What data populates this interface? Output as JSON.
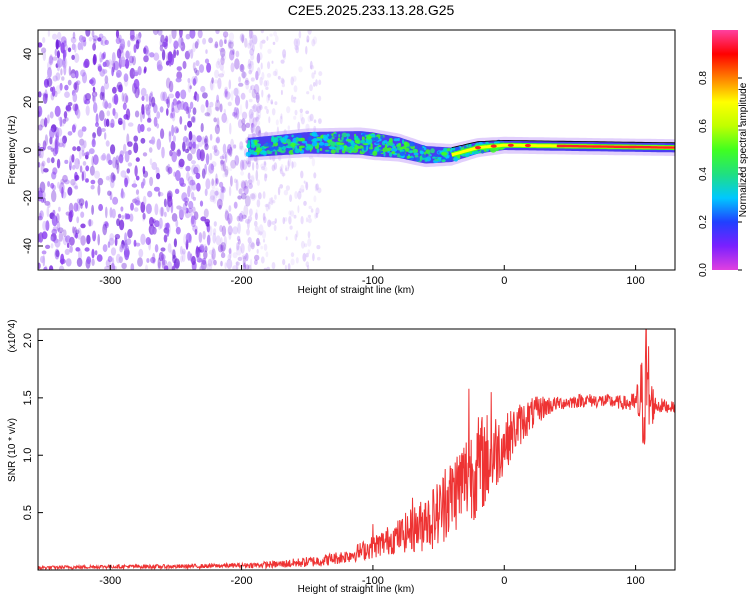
{
  "title": "C2E5.2025.233.13.28.G25",
  "colors": {
    "snr_line": "#ee3333",
    "spectrogram_band": "#1f5bff",
    "noise": "#7b2be0"
  },
  "chart_data": [
    {
      "type": "heatmap",
      "title": "C2E5.2025.233.13.28.G25",
      "xlabel": "Height of straight line (km)",
      "ylabel": "Frequency (Hz)",
      "xlim": [
        -355,
        130
      ],
      "ylim": [
        -50,
        50
      ],
      "xticks": [
        "-300",
        "-200",
        "-100",
        "0",
        "100"
      ],
      "yticks": [
        "-40",
        "-20",
        "0",
        "20",
        "40"
      ],
      "colorbar": {
        "label": "Normalized spectral amplitude",
        "range": [
          0,
          1
        ],
        "ticks": [
          "0.0",
          "0.2",
          "0.4",
          "0.6",
          "0.8"
        ],
        "colormap": [
          "#e040e0",
          "#7a20ff",
          "#2040ff",
          "#00c8ff",
          "#20e080",
          "#40ff20",
          "#c0ff00",
          "#ffff00",
          "#ff8000",
          "#ff0000",
          "#ff40a0"
        ]
      },
      "band": {
        "x_start": -195,
        "x_end": 130,
        "center": [
          [
            -195,
            1
          ],
          [
            -150,
            3
          ],
          [
            -110,
            3
          ],
          [
            -80,
            1
          ],
          [
            -60,
            -2
          ],
          [
            -40,
            -2
          ],
          [
            -20,
            1
          ],
          [
            0,
            2
          ],
          [
            130,
            1
          ]
        ],
        "halfwidth": [
          [
            -195,
            4
          ],
          [
            -100,
            5
          ],
          [
            -40,
            3
          ],
          [
            0,
            2
          ],
          [
            130,
            2
          ]
        ]
      },
      "noise_region": [
        -355,
        -195
      ],
      "faint_column": [
        -195,
        -140
      ]
    },
    {
      "type": "line",
      "xlabel": "Height of straight line (km)",
      "ylabel": "SNR (10 * v/v)",
      "scale_label": "(x10^4)",
      "xlim": [
        -355,
        130
      ],
      "ylim": [
        0,
        2.1
      ],
      "xticks": [
        "-300",
        "-200",
        "-100",
        "0",
        "100"
      ],
      "yticks": [
        "0.5",
        "1.0",
        "1.5",
        "2.0"
      ],
      "series": [
        {
          "envelope": [
            [
              -355,
              0.02
            ],
            [
              -300,
              0.03
            ],
            [
              -250,
              0.03
            ],
            [
              -200,
              0.04
            ],
            [
              -170,
              0.05
            ],
            [
              -140,
              0.08
            ],
            [
              -120,
              0.12
            ],
            [
              -100,
              0.2
            ],
            [
              -80,
              0.3
            ],
            [
              -60,
              0.4
            ],
            [
              -50,
              0.5
            ],
            [
              -40,
              0.65
            ],
            [
              -30,
              0.8
            ],
            [
              -20,
              0.9
            ],
            [
              -10,
              1.0
            ],
            [
              0,
              1.1
            ],
            [
              10,
              1.25
            ],
            [
              20,
              1.35
            ],
            [
              30,
              1.42
            ],
            [
              40,
              1.45
            ],
            [
              60,
              1.48
            ],
            [
              80,
              1.47
            ],
            [
              95,
              1.45
            ],
            [
              105,
              1.46
            ],
            [
              110,
              1.45
            ],
            [
              120,
              1.43
            ],
            [
              130,
              1.42
            ]
          ],
          "noise": [
            [
              -355,
              0.015
            ],
            [
              -200,
              0.02
            ],
            [
              -160,
              0.04
            ],
            [
              -120,
              0.06
            ],
            [
              -100,
              0.1
            ],
            [
              -80,
              0.15
            ],
            [
              -60,
              0.25
            ],
            [
              -40,
              0.35
            ],
            [
              -20,
              0.45
            ],
            [
              -10,
              0.4
            ],
            [
              0,
              0.25
            ],
            [
              20,
              0.15
            ],
            [
              40,
              0.06
            ],
            [
              90,
              0.06
            ],
            [
              100,
              0.1
            ],
            [
              105,
              0.45
            ],
            [
              110,
              0.35
            ],
            [
              115,
              0.08
            ],
            [
              130,
              0.04
            ]
          ],
          "spikes": [
            [
              -100,
              0.4
            ],
            [
              -70,
              0.63
            ],
            [
              -60,
              0.58
            ],
            [
              -45,
              0.88
            ],
            [
              -27,
              1.58
            ],
            [
              -10,
              1.55
            ],
            [
              108,
              2.1
            ],
            [
              110,
              1.95
            ]
          ]
        }
      ]
    }
  ]
}
